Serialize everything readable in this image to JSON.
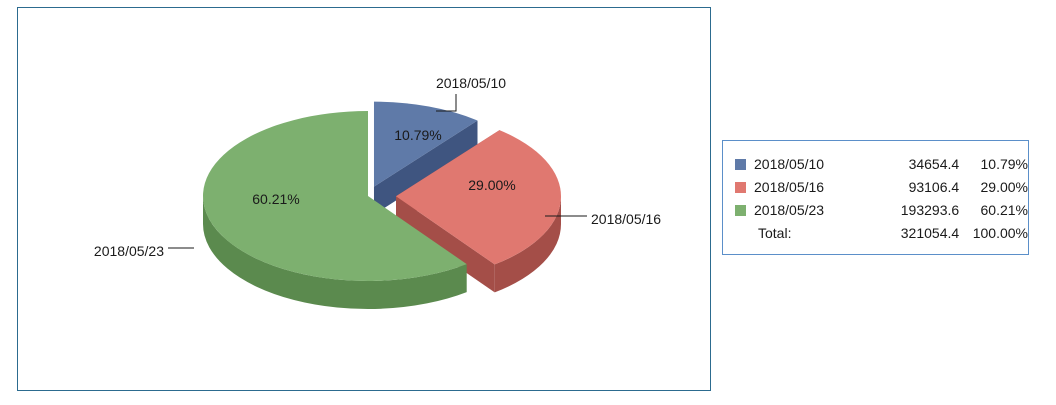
{
  "chart_data": {
    "type": "pie",
    "title": "",
    "slices": [
      {
        "label": "2018/05/10",
        "value": 34654.4,
        "percent": "10.79%",
        "value_text": "34654.4",
        "color": "#5f7aa8",
        "side": "#3f5580",
        "exploded": true
      },
      {
        "label": "2018/05/16",
        "value": 93106.4,
        "percent": "29.00%",
        "value_text": "93106.4",
        "color": "#e07870",
        "side": "#a44e48",
        "exploded": true
      },
      {
        "label": "2018/05/23",
        "value": 193293.6,
        "percent": "60.21%",
        "value_text": "193293.6",
        "color": "#7db06f",
        "side": "#5b8a4e",
        "exploded": false
      }
    ],
    "legend": {
      "position": "right",
      "total_label": "Total:",
      "total_value": "321054.4",
      "total_percent": "100.00%"
    }
  }
}
